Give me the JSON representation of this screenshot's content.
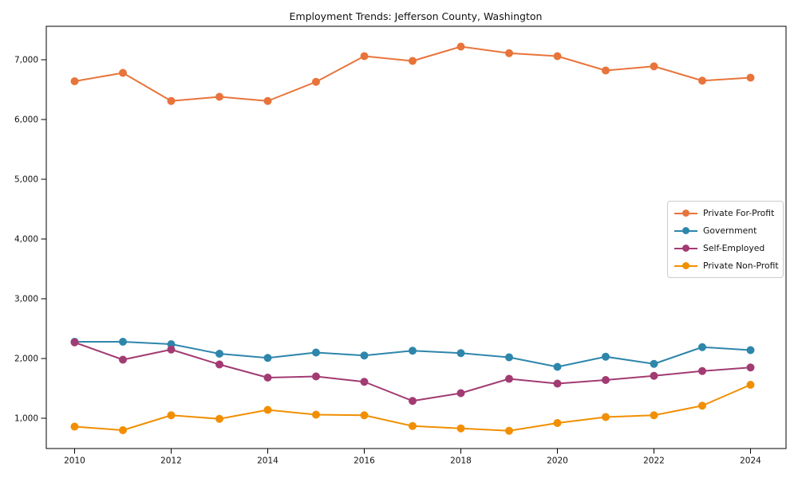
{
  "chart_data": {
    "type": "line",
    "title": "Employment Trends: Jefferson County, Washington",
    "xlabel": "",
    "ylabel": "",
    "x": [
      2010,
      2011,
      2012,
      2013,
      2014,
      2015,
      2016,
      2017,
      2018,
      2019,
      2020,
      2021,
      2022,
      2023,
      2024
    ],
    "xtick_labels": [
      "2010",
      "2012",
      "2014",
      "2016",
      "2018",
      "2020",
      "2022",
      "2024"
    ],
    "ytick_values": [
      1000,
      2000,
      3000,
      4000,
      5000,
      6000,
      7000
    ],
    "ytick_labels": [
      "1,000",
      "2,000",
      "3,000",
      "4,000",
      "5,000",
      "6,000",
      "7,000"
    ],
    "ylim": [
      500,
      7560
    ],
    "grid": false,
    "legend_position": "center-right",
    "marker": "circle",
    "axis_color": "#000000",
    "text_color": "#111111",
    "series": [
      {
        "name": "Private For-Profit",
        "color": "#e8743b",
        "values": [
          6640,
          6780,
          6310,
          6380,
          6310,
          6630,
          7060,
          6980,
          7220,
          7110,
          7060,
          6820,
          6890,
          6650,
          6700
        ]
      },
      {
        "name": "Government",
        "color": "#2e86ab",
        "values": [
          2280,
          2280,
          2240,
          2080,
          2010,
          2100,
          2050,
          2130,
          2090,
          2020,
          1860,
          2030,
          1910,
          2190,
          2140
        ]
      },
      {
        "name": "Self-Employed",
        "color": "#a23b72",
        "values": [
          2270,
          1980,
          2150,
          1900,
          1680,
          1700,
          1610,
          1290,
          1420,
          1660,
          1580,
          1640,
          1710,
          1790,
          1850
        ]
      },
      {
        "name": "Private Non-Profit",
        "color": "#f18f01",
        "values": [
          860,
          800,
          1050,
          990,
          1140,
          1060,
          1050,
          870,
          830,
          790,
          920,
          1020,
          1050,
          1210,
          1560
        ]
      }
    ]
  }
}
